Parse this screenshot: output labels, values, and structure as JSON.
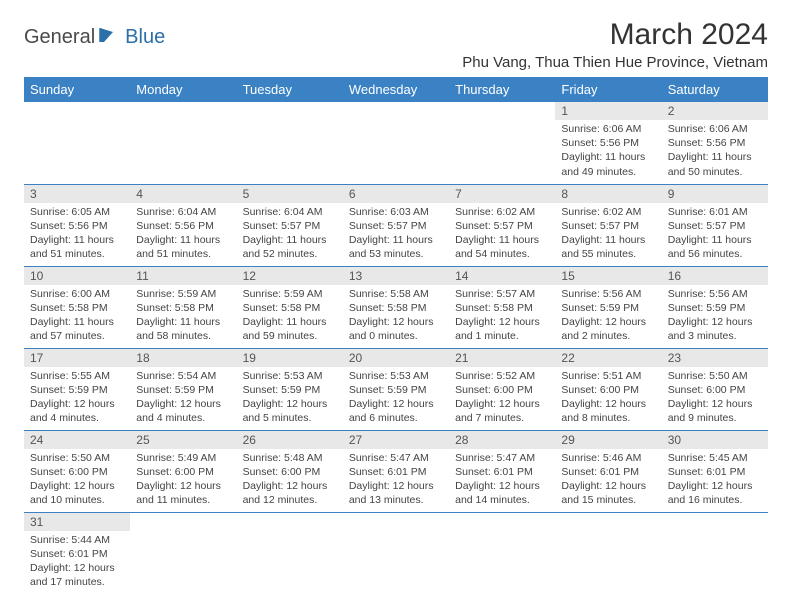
{
  "brand": {
    "general": "General",
    "blue": "Blue"
  },
  "title": "March 2024",
  "location": "Phu Vang, Thua Thien Hue Province, Vietnam",
  "header_color": "#3b82c4",
  "daynum_bg": "#e8e8e8",
  "weekdays": [
    "Sunday",
    "Monday",
    "Tuesday",
    "Wednesday",
    "Thursday",
    "Friday",
    "Saturday"
  ],
  "weeks": [
    [
      null,
      null,
      null,
      null,
      null,
      {
        "n": "1",
        "sr": "6:06 AM",
        "ss": "5:56 PM",
        "dl": "11 hours and 49 minutes."
      },
      {
        "n": "2",
        "sr": "6:06 AM",
        "ss": "5:56 PM",
        "dl": "11 hours and 50 minutes."
      }
    ],
    [
      {
        "n": "3",
        "sr": "6:05 AM",
        "ss": "5:56 PM",
        "dl": "11 hours and 51 minutes."
      },
      {
        "n": "4",
        "sr": "6:04 AM",
        "ss": "5:56 PM",
        "dl": "11 hours and 51 minutes."
      },
      {
        "n": "5",
        "sr": "6:04 AM",
        "ss": "5:57 PM",
        "dl": "11 hours and 52 minutes."
      },
      {
        "n": "6",
        "sr": "6:03 AM",
        "ss": "5:57 PM",
        "dl": "11 hours and 53 minutes."
      },
      {
        "n": "7",
        "sr": "6:02 AM",
        "ss": "5:57 PM",
        "dl": "11 hours and 54 minutes."
      },
      {
        "n": "8",
        "sr": "6:02 AM",
        "ss": "5:57 PM",
        "dl": "11 hours and 55 minutes."
      },
      {
        "n": "9",
        "sr": "6:01 AM",
        "ss": "5:57 PM",
        "dl": "11 hours and 56 minutes."
      }
    ],
    [
      {
        "n": "10",
        "sr": "6:00 AM",
        "ss": "5:58 PM",
        "dl": "11 hours and 57 minutes."
      },
      {
        "n": "11",
        "sr": "5:59 AM",
        "ss": "5:58 PM",
        "dl": "11 hours and 58 minutes."
      },
      {
        "n": "12",
        "sr": "5:59 AM",
        "ss": "5:58 PM",
        "dl": "11 hours and 59 minutes."
      },
      {
        "n": "13",
        "sr": "5:58 AM",
        "ss": "5:58 PM",
        "dl": "12 hours and 0 minutes."
      },
      {
        "n": "14",
        "sr": "5:57 AM",
        "ss": "5:58 PM",
        "dl": "12 hours and 1 minute."
      },
      {
        "n": "15",
        "sr": "5:56 AM",
        "ss": "5:59 PM",
        "dl": "12 hours and 2 minutes."
      },
      {
        "n": "16",
        "sr": "5:56 AM",
        "ss": "5:59 PM",
        "dl": "12 hours and 3 minutes."
      }
    ],
    [
      {
        "n": "17",
        "sr": "5:55 AM",
        "ss": "5:59 PM",
        "dl": "12 hours and 4 minutes."
      },
      {
        "n": "18",
        "sr": "5:54 AM",
        "ss": "5:59 PM",
        "dl": "12 hours and 4 minutes."
      },
      {
        "n": "19",
        "sr": "5:53 AM",
        "ss": "5:59 PM",
        "dl": "12 hours and 5 minutes."
      },
      {
        "n": "20",
        "sr": "5:53 AM",
        "ss": "5:59 PM",
        "dl": "12 hours and 6 minutes."
      },
      {
        "n": "21",
        "sr": "5:52 AM",
        "ss": "6:00 PM",
        "dl": "12 hours and 7 minutes."
      },
      {
        "n": "22",
        "sr": "5:51 AM",
        "ss": "6:00 PM",
        "dl": "12 hours and 8 minutes."
      },
      {
        "n": "23",
        "sr": "5:50 AM",
        "ss": "6:00 PM",
        "dl": "12 hours and 9 minutes."
      }
    ],
    [
      {
        "n": "24",
        "sr": "5:50 AM",
        "ss": "6:00 PM",
        "dl": "12 hours and 10 minutes."
      },
      {
        "n": "25",
        "sr": "5:49 AM",
        "ss": "6:00 PM",
        "dl": "12 hours and 11 minutes."
      },
      {
        "n": "26",
        "sr": "5:48 AM",
        "ss": "6:00 PM",
        "dl": "12 hours and 12 minutes."
      },
      {
        "n": "27",
        "sr": "5:47 AM",
        "ss": "6:01 PM",
        "dl": "12 hours and 13 minutes."
      },
      {
        "n": "28",
        "sr": "5:47 AM",
        "ss": "6:01 PM",
        "dl": "12 hours and 14 minutes."
      },
      {
        "n": "29",
        "sr": "5:46 AM",
        "ss": "6:01 PM",
        "dl": "12 hours and 15 minutes."
      },
      {
        "n": "30",
        "sr": "5:45 AM",
        "ss": "6:01 PM",
        "dl": "12 hours and 16 minutes."
      }
    ],
    [
      {
        "n": "31",
        "sr": "5:44 AM",
        "ss": "6:01 PM",
        "dl": "12 hours and 17 minutes."
      },
      null,
      null,
      null,
      null,
      null,
      null
    ]
  ],
  "labels": {
    "sunrise": "Sunrise:",
    "sunset": "Sunset:",
    "daylight": "Daylight:"
  }
}
